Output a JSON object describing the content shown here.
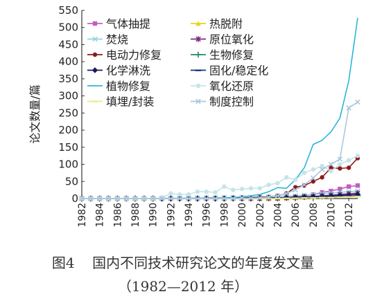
{
  "caption": {
    "line1": "图4    国内不同技术研究论文的年度发文量",
    "line2": "（1982—2012 年）"
  },
  "chart_data": {
    "type": "line",
    "ylabel": "论文数量/篇",
    "xlabel": "",
    "ylim": [
      0,
      550
    ],
    "yticks": [
      0,
      50,
      100,
      150,
      200,
      250,
      300,
      350,
      400,
      450,
      500,
      550
    ],
    "xlim": [
      1982,
      2013
    ],
    "xticks": [
      "1982",
      "1984",
      "1986",
      "1988",
      "1990",
      "1992",
      "1994",
      "1996",
      "1998",
      "2000",
      "2002",
      "2004",
      "2006",
      "2008",
      "2010",
      "2012"
    ],
    "legend_position": "top-left",
    "legend_columns": 2,
    "x": [
      1982,
      1983,
      1984,
      1985,
      1986,
      1987,
      1988,
      1989,
      1990,
      1991,
      1992,
      1993,
      1994,
      1995,
      1996,
      1997,
      1998,
      1999,
      2000,
      2001,
      2002,
      2003,
      2004,
      2005,
      2006,
      2007,
      2008,
      2009,
      2010,
      2011,
      2012,
      2013
    ],
    "series": [
      {
        "name": "气体抽提",
        "color": "#c25ec2",
        "marker": "square",
        "values": [
          0,
          0,
          0,
          0,
          0,
          0,
          0,
          0,
          0,
          0,
          0,
          0,
          0,
          0,
          0,
          0,
          0,
          0,
          0,
          0,
          1,
          1,
          2,
          3,
          5,
          8,
          12,
          18,
          22,
          28,
          35,
          38
        ]
      },
      {
        "name": "热脱附",
        "color": "#e3d61a",
        "marker": "triangle",
        "values": [
          0,
          0,
          0,
          0,
          0,
          0,
          0,
          0,
          0,
          0,
          0,
          0,
          0,
          0,
          0,
          0,
          0,
          0,
          0,
          0,
          0,
          0,
          0,
          1,
          2,
          3,
          4,
          6,
          8,
          10,
          12,
          14
        ]
      },
      {
        "name": "焚烧",
        "color": "#8fd3e0",
        "marker": "x",
        "values": [
          0,
          0,
          0,
          0,
          0,
          0,
          0,
          0,
          1,
          1,
          1,
          1,
          2,
          2,
          2,
          3,
          3,
          3,
          4,
          4,
          5,
          5,
          6,
          7,
          8,
          10,
          12,
          14,
          16,
          18,
          20,
          22
        ]
      },
      {
        "name": "原位氧化",
        "color": "#7a2a7a",
        "marker": "asterisk",
        "values": [
          0,
          0,
          0,
          0,
          0,
          0,
          0,
          0,
          0,
          0,
          0,
          0,
          0,
          0,
          0,
          0,
          0,
          0,
          0,
          0,
          0,
          1,
          1,
          2,
          3,
          5,
          6,
          8,
          10,
          12,
          14,
          16
        ]
      },
      {
        "name": "电动力修复",
        "color": "#8b1a1a",
        "marker": "circle",
        "values": [
          0,
          0,
          0,
          0,
          0,
          0,
          0,
          0,
          0,
          0,
          0,
          0,
          0,
          0,
          1,
          1,
          1,
          2,
          2,
          3,
          4,
          5,
          8,
          15,
          33,
          38,
          50,
          62,
          90,
          88,
          90,
          118
        ]
      },
      {
        "name": "生物修复",
        "color": "#1d8a6e",
        "marker": "plus",
        "values": [
          0,
          0,
          0,
          0,
          0,
          0,
          0,
          0,
          0,
          0,
          0,
          0,
          0,
          0,
          0,
          0,
          0,
          0,
          1,
          1,
          1,
          2,
          2,
          3,
          4,
          5,
          6,
          7,
          8,
          9,
          10,
          11
        ]
      },
      {
        "name": "化学淋洗",
        "color": "#1a1a5e",
        "marker": "diamond",
        "values": [
          0,
          0,
          0,
          0,
          0,
          0,
          0,
          0,
          0,
          0,
          0,
          0,
          0,
          0,
          0,
          0,
          0,
          1,
          1,
          1,
          1,
          2,
          2,
          3,
          4,
          5,
          6,
          7,
          8,
          9,
          10,
          12
        ]
      },
      {
        "name": "固化/稳定化",
        "color": "#14347a",
        "marker": "dash",
        "values": [
          0,
          0,
          0,
          0,
          0,
          0,
          0,
          0,
          0,
          0,
          0,
          0,
          0,
          0,
          0,
          0,
          1,
          1,
          1,
          1,
          1,
          2,
          2,
          2,
          3,
          3,
          4,
          4,
          5,
          5,
          6,
          7
        ]
      },
      {
        "name": "植物修复",
        "color": "#29b6d9",
        "marker": "none",
        "values": [
          0,
          0,
          0,
          0,
          0,
          0,
          0,
          0,
          0,
          0,
          0,
          0,
          0,
          0,
          0,
          1,
          2,
          3,
          5,
          8,
          12,
          20,
          32,
          30,
          55,
          90,
          158,
          170,
          195,
          235,
          345,
          528
        ]
      },
      {
        "name": "氧化还原",
        "color": "#c5e4ea",
        "marker": "circle",
        "values": [
          0,
          0,
          0,
          0,
          0,
          0,
          0,
          0,
          0,
          2,
          15,
          12,
          12,
          20,
          20,
          18,
          35,
          25,
          28,
          30,
          30,
          40,
          45,
          62,
          55,
          75,
          85,
          95,
          80,
          100,
          112,
          125
        ]
      },
      {
        "name": "填埋/封装",
        "color": "#efe98a",
        "marker": "dash",
        "values": [
          0,
          0,
          0,
          0,
          0,
          0,
          0,
          0,
          0,
          0,
          0,
          0,
          0,
          0,
          0,
          0,
          0,
          0,
          0,
          0,
          0,
          0,
          0,
          1,
          1,
          2,
          2,
          3,
          3,
          4,
          5,
          6
        ]
      },
      {
        "name": "制度控制",
        "color": "#a9c6e0",
        "marker": "x",
        "values": [
          0,
          0,
          0,
          0,
          0,
          0,
          0,
          0,
          0,
          0,
          0,
          0,
          0,
          0,
          0,
          0,
          0,
          0,
          1,
          1,
          2,
          4,
          8,
          15,
          25,
          40,
          60,
          85,
          100,
          115,
          265,
          282
        ]
      }
    ]
  }
}
